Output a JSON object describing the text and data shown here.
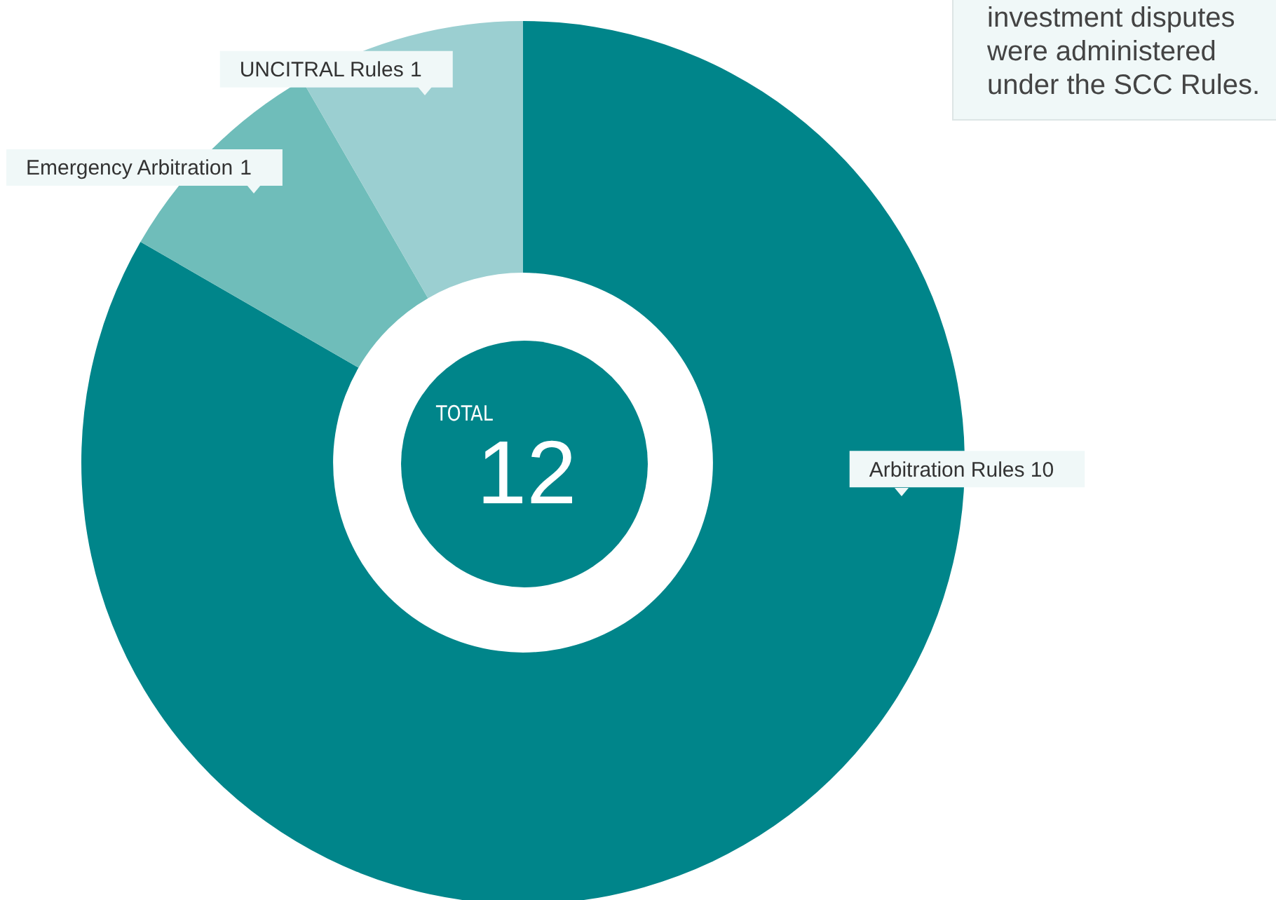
{
  "chart_data": {
    "type": "donut",
    "categories": [
      "Arbitration Rules",
      "Emergency Arbitration",
      "UNCITRAL Rules"
    ],
    "values": [
      10,
      1,
      1
    ],
    "colors": [
      "#00858a",
      "#6fbdba",
      "#9bcfd1"
    ],
    "data_labels": true,
    "legend": false,
    "annotations": [
      "TOTAL",
      "12",
      "investment disputes were administered under the SCC Rules."
    ]
  }
}
